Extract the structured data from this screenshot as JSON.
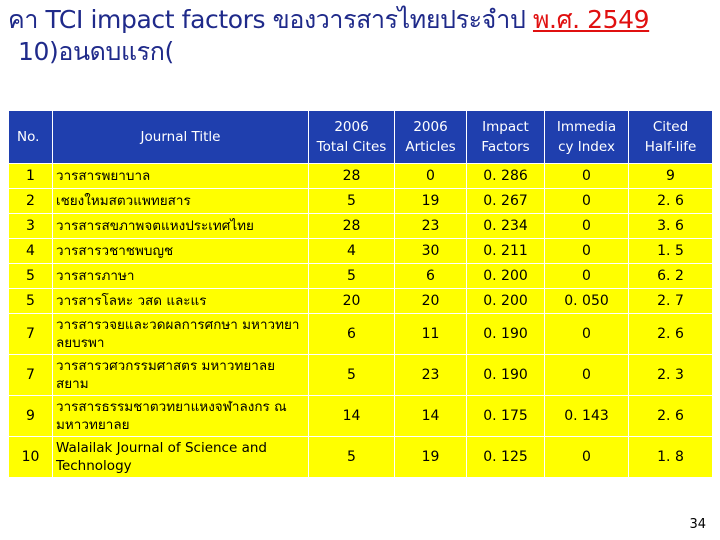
{
  "title": {
    "main": "คา TCI impact factors ของวารสารไทยประจำป ",
    "year": "พ.ศ. 2549",
    "line2": "10)อนดบแรก("
  },
  "table": {
    "headers": {
      "no": "No.",
      "journal": "Journal Title",
      "cites_year": "2006",
      "cites": "Total Cites",
      "articles_year": "2006",
      "articles": "Articles",
      "impact1": "Impact",
      "impact2": "Factors",
      "imm1": "Immedia",
      "imm2": "cy Index",
      "half1": "Cited",
      "half2": "Half-life"
    },
    "rows": [
      {
        "no": "1",
        "title": "วารสารพยาบาล",
        "cites": "28",
        "articles": "0",
        "impact": "0. 286",
        "immediacy": "0",
        "halflife": "9"
      },
      {
        "no": "2",
        "title": "เชยงใหมสตวแพทยสาร",
        "cites": "5",
        "articles": "19",
        "impact": "0. 267",
        "immediacy": "0",
        "halflife": "2. 6"
      },
      {
        "no": "3",
        "title": "วารสารสขภาพจตแหงประเทศไทย",
        "cites": "28",
        "articles": "23",
        "impact": "0. 234",
        "immediacy": "0",
        "halflife": "3. 6"
      },
      {
        "no": "4",
        "title": "วารสารวชาชพบญช",
        "cites": "4",
        "articles": "30",
        "impact": "0. 211",
        "immediacy": "0",
        "halflife": "1. 5"
      },
      {
        "no": "5",
        "title": "วารสารภาษา",
        "cites": "5",
        "articles": "6",
        "impact": "0. 200",
        "immediacy": "0",
        "halflife": "6. 2"
      },
      {
        "no": "5",
        "title": "วารสารโลหะ วสด และแร",
        "cites": "20",
        "articles": "20",
        "impact": "0. 200",
        "immediacy": "0. 050",
        "halflife": "2. 7"
      },
      {
        "no": "7",
        "title": "วารสารวจยและวดผลการศกษา มหาวทยาลยบรพา",
        "cites": "6",
        "articles": "11",
        "impact": "0. 190",
        "immediacy": "0",
        "halflife": "2. 6"
      },
      {
        "no": "7",
        "title": "วารสารวศวกรรมศาสตร มหาวทยาลยสยาม",
        "cites": "5",
        "articles": "23",
        "impact": "0. 190",
        "immediacy": "0",
        "halflife": "2. 3"
      },
      {
        "no": "9",
        "title": "วารสารธรรมชาตวทยาแหงจฬาลงกร ณมหาวทยาลย",
        "cites": "14",
        "articles": "14",
        "impact": "0. 175",
        "immediacy": "0. 143",
        "halflife": "2. 6"
      },
      {
        "no": "10",
        "title": "Walailak Journal of Science and Technology",
        "cites": "5",
        "articles": "19",
        "impact": "0. 125",
        "immediacy": "0",
        "halflife": "1. 8"
      }
    ]
  },
  "page_number": "34",
  "colors": {
    "header_bg": "#1f3fae",
    "row_bg": "#ffff00",
    "title_text": "#1f2a8a",
    "title_accent": "#e01010"
  }
}
